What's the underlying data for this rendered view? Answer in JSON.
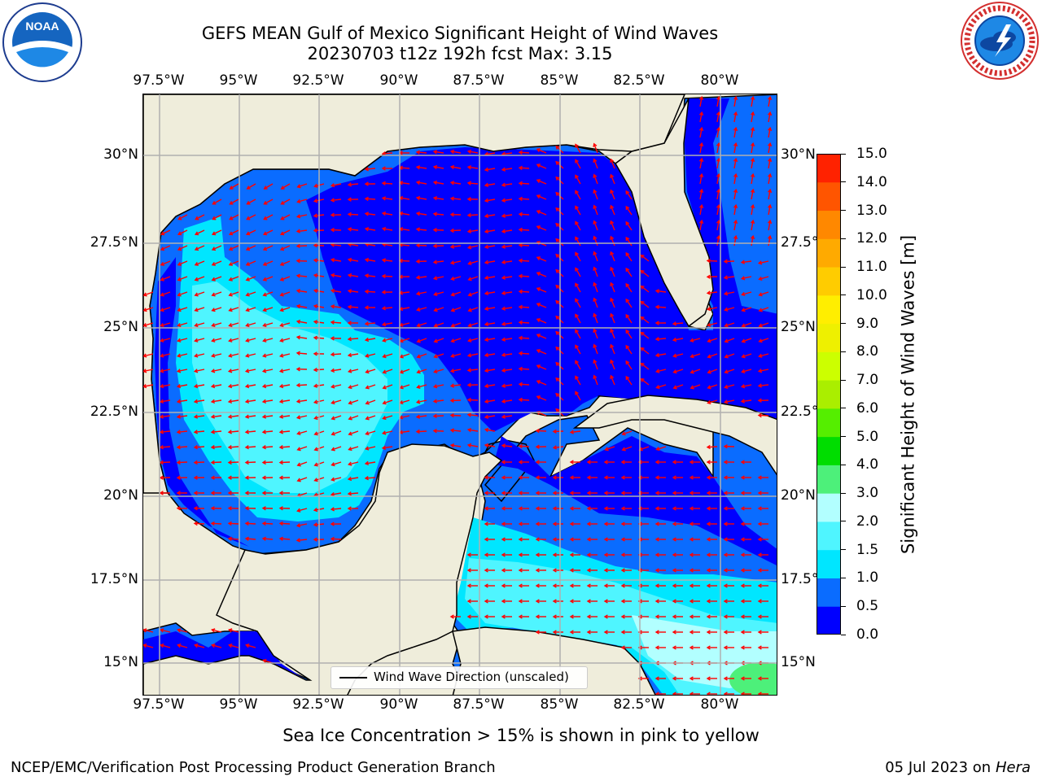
{
  "header": {
    "title_line1": "GEFS MEAN Gulf of Mexico Significant Height of Wind Waves",
    "title_line2": "20230703 t12z 192h fcst   Max: 3.15"
  },
  "logos": {
    "noaa_text": "NOAA",
    "noaa_ring_text": "NATIONAL OCEANIC AND ATMOSPHERIC ADMINISTRATION · U.S. DEPARTMENT OF COMMERCE",
    "nws_ring_text": "NATIONAL WEATHER SERVICE"
  },
  "map": {
    "lon_labels": [
      "97.5°W",
      "95°W",
      "92.5°W",
      "90°W",
      "87.5°W",
      "85°W",
      "82.5°W",
      "80°W"
    ],
    "lat_labels": [
      "30°N",
      "27.5°N",
      "25°N",
      "22.5°N",
      "20°N",
      "17.5°N",
      "15°N"
    ],
    "legend_label": "Wind Wave Direction (unscaled)",
    "colors": {
      "land": "#efeddb",
      "vector": "#ff0000",
      "grid": "#b0b0b0"
    }
  },
  "colorbar": {
    "label": "Significant Height of Wind Waves [m]",
    "ticks": [
      "0.0",
      "0.5",
      "1.0",
      "1.5",
      "2.0",
      "3.0",
      "4.0",
      "5.0",
      "6.0",
      "7.0",
      "8.0",
      "9.0",
      "10.0",
      "11.0",
      "12.0",
      "13.0",
      "14.0",
      "15.0"
    ],
    "colors": [
      "#0000ff",
      "#0a6cff",
      "#00e6ff",
      "#4ff5ff",
      "#b2ffff",
      "#4df07a",
      "#00dd00",
      "#55ee00",
      "#aaee00",
      "#ccff00",
      "#eef000",
      "#ffee00",
      "#ffcc00",
      "#ffaa00",
      "#ff8800",
      "#ff5500",
      "#ff2200"
    ]
  },
  "footer": {
    "note": "Sea Ice Concentration > 15% is shown in pink to yellow",
    "left": "NCEP/EMC/Verification Post Processing Product Generation Branch",
    "right_date": "05 Jul 2023 on ",
    "right_machine": "Hera"
  }
}
